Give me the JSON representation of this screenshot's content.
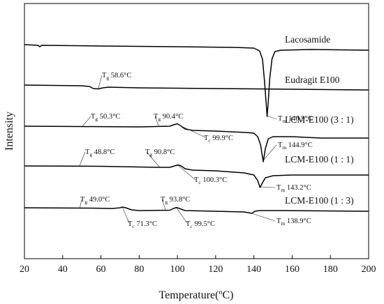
{
  "chart_data": {
    "type": "line",
    "xlabel_base": "Temperature(",
    "xlabel_sup": "o",
    "xlabel_tail": "C)",
    "ylabel": "Intensity",
    "xlim": [
      20,
      200
    ],
    "x_ticks": [
      "20",
      "40",
      "60",
      "80",
      "100",
      "120",
      "140",
      "160",
      "180",
      "200"
    ],
    "grid": false,
    "series": [
      {
        "name": "Lacosamide",
        "points": [
          [
            20,
            64
          ],
          [
            27,
            65
          ],
          [
            28,
            67
          ],
          [
            29,
            65
          ],
          [
            60,
            66
          ],
          [
            100,
            67
          ],
          [
            130,
            68
          ],
          [
            140,
            69
          ],
          [
            143,
            73
          ],
          [
            144.5,
            85
          ],
          [
            145.5,
            115
          ],
          [
            146.4,
            148
          ],
          [
            146.9,
            167
          ],
          [
            147.4,
            150
          ],
          [
            148.3,
            112
          ],
          [
            149.5,
            84
          ],
          [
            151,
            74
          ],
          [
            154,
            72
          ],
          [
            170,
            71
          ],
          [
            200,
            72
          ]
        ]
      },
      {
        "name": "Eudragit E100",
        "points": [
          [
            20,
            122
          ],
          [
            50,
            123
          ],
          [
            54,
            124
          ],
          [
            56,
            127
          ],
          [
            58.6,
            127.5
          ],
          [
            61,
            126
          ],
          [
            64,
            125
          ],
          [
            80,
            126
          ],
          [
            120,
            127
          ],
          [
            160,
            128
          ],
          [
            200,
            129
          ]
        ]
      },
      {
        "name": "LCM-E100 (3 : 1)",
        "points": [
          [
            20,
            181
          ],
          [
            50,
            181.5
          ],
          [
            80,
            182
          ],
          [
            96,
            181
          ],
          [
            98,
            179
          ],
          [
            99.9,
            177.5
          ],
          [
            101.5,
            180
          ],
          [
            104,
            185
          ],
          [
            108,
            187
          ],
          [
            120,
            188
          ],
          [
            136,
            190
          ],
          [
            140,
            191
          ],
          [
            142,
            196
          ],
          [
            143.5,
            208
          ],
          [
            144.9,
            232
          ],
          [
            146,
            213
          ],
          [
            147.5,
            199
          ],
          [
            150,
            196
          ],
          [
            160,
            196
          ],
          [
            175,
            198
          ],
          [
            200,
            198
          ]
        ]
      },
      {
        "name": "LCM-E100 (1 : 1)",
        "points": [
          [
            20,
            238
          ],
          [
            60,
            238.5
          ],
          [
            90,
            240
          ],
          [
            96,
            240
          ],
          [
            98.5,
            238
          ],
          [
            100.3,
            236.5
          ],
          [
            102,
            238
          ],
          [
            104,
            242
          ],
          [
            108,
            244
          ],
          [
            120,
            245
          ],
          [
            135,
            248
          ],
          [
            140,
            251
          ],
          [
            142,
            259
          ],
          [
            143.2,
            269
          ],
          [
            144.5,
            262
          ],
          [
            146,
            255
          ],
          [
            150,
            252
          ],
          [
            160,
            251
          ],
          [
            200,
            251
          ]
        ]
      },
      {
        "name": "LCM-E100 (1 : 3)",
        "points": [
          [
            20,
            298
          ],
          [
            55,
            298.5
          ],
          [
            66,
            299
          ],
          [
            70,
            298
          ],
          [
            71.3,
            297
          ],
          [
            73,
            298
          ],
          [
            76,
            301
          ],
          [
            80,
            302
          ],
          [
            96,
            301.5
          ],
          [
            98,
            299
          ],
          [
            99.5,
            297.5
          ],
          [
            101,
            299
          ],
          [
            104,
            302
          ],
          [
            120,
            303
          ],
          [
            135,
            304
          ],
          [
            137,
            305
          ],
          [
            138.9,
            306
          ],
          [
            140.5,
            303
          ],
          [
            143,
            302
          ],
          [
            155,
            302
          ],
          [
            200,
            303
          ]
        ]
      }
    ],
    "annotations": [
      {
        "main": "T",
        "sub": "m",
        "text": " 146.9°C"
      },
      {
        "main": "T",
        "sub": "g",
        "text": " 58.6°C"
      },
      {
        "main": "T",
        "sub": "g",
        "text": " 50.3°C"
      },
      {
        "main": "T",
        "sub": "g",
        "text": " 90.4°C"
      },
      {
        "main": "T",
        "sub": "c",
        "text": " 99.9°C"
      },
      {
        "main": "T",
        "sub": "m",
        "text": " 144.9°C"
      },
      {
        "main": "T",
        "sub": "g",
        "text": " 48.8°C"
      },
      {
        "main": "T",
        "sub": "g",
        "text": " 90.8°C"
      },
      {
        "main": "T",
        "sub": "c",
        "text": " 100.3°C"
      },
      {
        "main": "T",
        "sub": "m",
        "text": " 143.2°C"
      },
      {
        "main": "T",
        "sub": "g",
        "text": " 49.0°C"
      },
      {
        "main": "T",
        "sub": "g",
        "text": " 93.8°C"
      },
      {
        "main": "T",
        "sub": "c",
        "text": " 71.3°C"
      },
      {
        "main": "T",
        "sub": "c",
        "text": " 99.5°C"
      },
      {
        "main": "T",
        "sub": "m",
        "text": " 138.9°C"
      }
    ]
  }
}
